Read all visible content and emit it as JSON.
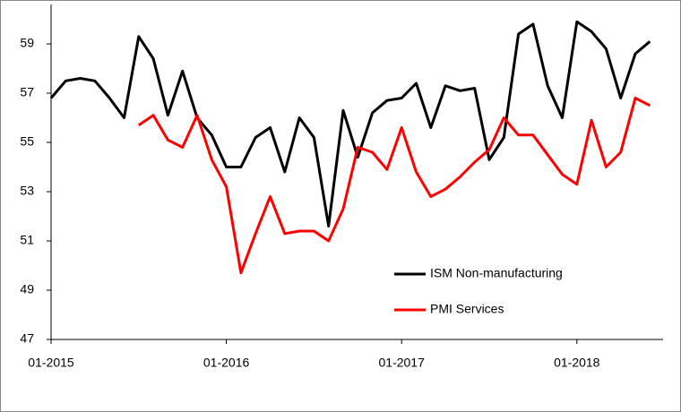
{
  "chart_data": {
    "type": "line",
    "categories": [
      "01-2015",
      null,
      null,
      null,
      null,
      null,
      null,
      null,
      null,
      null,
      null,
      null,
      "01-2016",
      null,
      null,
      null,
      null,
      null,
      null,
      null,
      null,
      null,
      null,
      null,
      "01-2017",
      null,
      null,
      null,
      null,
      null,
      null,
      null,
      null,
      null,
      null,
      null,
      "01-2018",
      null,
      null,
      null,
      null,
      null
    ],
    "series": [
      {
        "name": "ISM Non-manufacturing",
        "color": "#000000",
        "values": [
          56.8,
          57.5,
          57.6,
          57.5,
          56.8,
          56.0,
          59.3,
          58.4,
          56.1,
          57.9,
          56.0,
          55.3,
          54.0,
          54.0,
          55.2,
          55.6,
          53.8,
          56.0,
          55.2,
          51.6,
          56.3,
          54.4,
          56.2,
          56.7,
          56.8,
          57.4,
          55.6,
          57.3,
          57.1,
          57.2,
          54.3,
          55.2,
          59.4,
          59.8,
          57.3,
          56.0,
          59.9,
          59.5,
          58.8,
          56.8,
          58.6,
          59.1
        ]
      },
      {
        "name": "PMI Services",
        "color": "#ff0000",
        "values": [
          null,
          null,
          null,
          null,
          null,
          null,
          55.7,
          56.1,
          55.1,
          54.8,
          56.1,
          54.3,
          53.2,
          49.7,
          51.3,
          52.8,
          51.3,
          51.4,
          51.4,
          51.0,
          52.3,
          54.8,
          54.6,
          53.9,
          55.6,
          53.8,
          52.8,
          53.1,
          53.6,
          54.2,
          54.7,
          56.0,
          55.3,
          55.3,
          54.5,
          53.7,
          53.3,
          55.9,
          54.0,
          54.6,
          56.8,
          56.5
        ]
      }
    ],
    "ylim": [
      47,
      60.6
    ],
    "yticks": [
      47,
      49,
      51,
      53,
      55,
      57,
      59
    ],
    "grid": false,
    "legend": "lower right"
  }
}
